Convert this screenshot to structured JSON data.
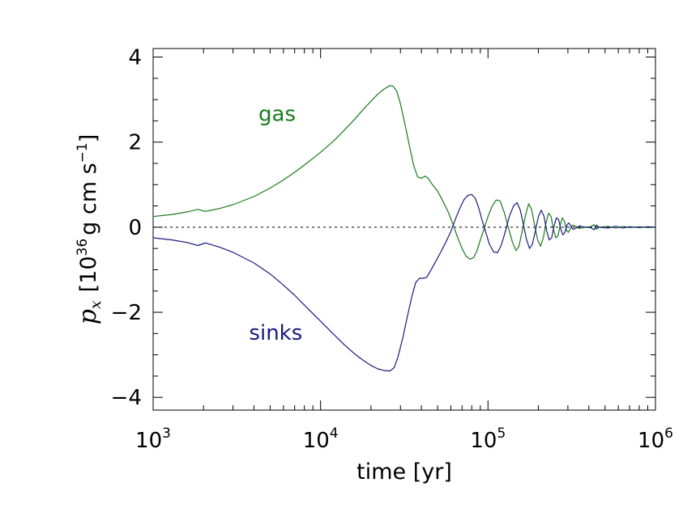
{
  "chart_data": {
    "type": "line",
    "xlabel": "time [yr]",
    "ylabel": {
      "symbol": "p",
      "subscript": "x",
      "open": "[10",
      "exponent": "36",
      "unit": "g cm s",
      "unit_exponent": "−1",
      "close": "]"
    },
    "x_scale": "log",
    "xlim": [
      1000,
      1000000
    ],
    "ylim": [
      -4.3,
      4.2
    ],
    "x_ticks": [
      {
        "value": 1000,
        "base": "10",
        "exp": "3"
      },
      {
        "value": 10000,
        "base": "10",
        "exp": "4"
      },
      {
        "value": 100000,
        "base": "10",
        "exp": "5"
      },
      {
        "value": 1000000,
        "base": "10",
        "exp": "6"
      }
    ],
    "y_ticks": [
      {
        "value": -4,
        "label": "−4"
      },
      {
        "value": -2,
        "label": "−2"
      },
      {
        "value": 0,
        "label": "0"
      },
      {
        "value": 2,
        "label": "2"
      },
      {
        "value": 4,
        "label": "4"
      }
    ],
    "reference_line": {
      "y": 0,
      "style": "dashed"
    },
    "grid": false,
    "series": [
      {
        "name": "gas",
        "color": "#1a7a1a",
        "points": [
          [
            1000,
            0.25
          ],
          [
            1300,
            0.3
          ],
          [
            1600,
            0.36
          ],
          [
            1850,
            0.42
          ],
          [
            2050,
            0.37
          ],
          [
            2500,
            0.44
          ],
          [
            3000,
            0.53
          ],
          [
            4000,
            0.72
          ],
          [
            5000,
            0.92
          ],
          [
            6000,
            1.11
          ],
          [
            7000,
            1.29
          ],
          [
            8000,
            1.46
          ],
          [
            10000,
            1.76
          ],
          [
            12000,
            2.03
          ],
          [
            14000,
            2.3
          ],
          [
            16000,
            2.54
          ],
          [
            18000,
            2.77
          ],
          [
            20000,
            2.96
          ],
          [
            22000,
            3.13
          ],
          [
            24000,
            3.25
          ],
          [
            26000,
            3.33
          ],
          [
            27000,
            3.32
          ],
          [
            28500,
            3.2
          ],
          [
            30000,
            2.9
          ],
          [
            32000,
            2.4
          ],
          [
            34000,
            1.9
          ],
          [
            36000,
            1.45
          ],
          [
            38000,
            1.18
          ],
          [
            40000,
            1.15
          ],
          [
            42000,
            1.2
          ],
          [
            44000,
            1.15
          ],
          [
            46000,
            1.03
          ],
          [
            50000,
            0.85
          ],
          [
            54000,
            0.6
          ],
          [
            58000,
            0.35
          ],
          [
            62000,
            0.05
          ],
          [
            66000,
            -0.25
          ],
          [
            70000,
            -0.5
          ],
          [
            74000,
            -0.68
          ],
          [
            78000,
            -0.75
          ],
          [
            82000,
            -0.72
          ],
          [
            86000,
            -0.55
          ],
          [
            90000,
            -0.3
          ],
          [
            95000,
            -0.03
          ],
          [
            100000,
            0.25
          ],
          [
            106000,
            0.5
          ],
          [
            112000,
            0.64
          ],
          [
            118000,
            0.62
          ],
          [
            125000,
            0.35
          ],
          [
            132000,
            0.0
          ],
          [
            140000,
            -0.35
          ],
          [
            147000,
            -0.55
          ],
          [
            153000,
            -0.45
          ],
          [
            160000,
            -0.1
          ],
          [
            168000,
            0.3
          ],
          [
            175000,
            0.55
          ],
          [
            182000,
            0.42
          ],
          [
            190000,
            0.05
          ],
          [
            198000,
            -0.3
          ],
          [
            206000,
            -0.45
          ],
          [
            214000,
            -0.25
          ],
          [
            222000,
            0.1
          ],
          [
            230000,
            0.33
          ],
          [
            238000,
            0.25
          ],
          [
            246000,
            -0.05
          ],
          [
            254000,
            -0.25
          ],
          [
            262000,
            -0.2
          ],
          [
            270000,
            0.05
          ],
          [
            278000,
            0.22
          ],
          [
            286000,
            0.14
          ],
          [
            294000,
            -0.07
          ],
          [
            302000,
            -0.12
          ],
          [
            310000,
            -0.04
          ],
          [
            320000,
            0.05
          ],
          [
            335000,
            0.02
          ],
          [
            350000,
            -0.03
          ],
          [
            380000,
            0.0
          ],
          [
            410000,
            0.01
          ],
          [
            430000,
            0.06
          ],
          [
            445000,
            -0.05
          ],
          [
            460000,
            0.0
          ],
          [
            520000,
            0.02
          ],
          [
            580000,
            -0.02
          ],
          [
            640000,
            0.02
          ],
          [
            700000,
            -0.01
          ],
          [
            800000,
            0.01
          ],
          [
            900000,
            -0.01
          ],
          [
            1000000,
            0.0
          ]
        ]
      },
      {
        "name": "sinks",
        "color": "#1a1a80",
        "points": [
          [
            1000,
            -0.25
          ],
          [
            1300,
            -0.3
          ],
          [
            1600,
            -0.36
          ],
          [
            1850,
            -0.43
          ],
          [
            2050,
            -0.37
          ],
          [
            2500,
            -0.47
          ],
          [
            3000,
            -0.59
          ],
          [
            4000,
            -0.84
          ],
          [
            5000,
            -1.1
          ],
          [
            6000,
            -1.36
          ],
          [
            7000,
            -1.6
          ],
          [
            8000,
            -1.83
          ],
          [
            10000,
            -2.21
          ],
          [
            12000,
            -2.52
          ],
          [
            14000,
            -2.78
          ],
          [
            16000,
            -2.98
          ],
          [
            18000,
            -3.13
          ],
          [
            20000,
            -3.25
          ],
          [
            22000,
            -3.33
          ],
          [
            24000,
            -3.37
          ],
          [
            26000,
            -3.38
          ],
          [
            27500,
            -3.3
          ],
          [
            29000,
            -3.05
          ],
          [
            31000,
            -2.6
          ],
          [
            33000,
            -2.1
          ],
          [
            35000,
            -1.65
          ],
          [
            37000,
            -1.3
          ],
          [
            39000,
            -1.2
          ],
          [
            41000,
            -1.2
          ],
          [
            43000,
            -1.18
          ],
          [
            45000,
            -1.05
          ],
          [
            48000,
            -0.85
          ],
          [
            52000,
            -0.6
          ],
          [
            56000,
            -0.35
          ],
          [
            60000,
            -0.1
          ],
          [
            64000,
            0.2
          ],
          [
            68000,
            0.45
          ],
          [
            72000,
            0.65
          ],
          [
            76000,
            0.75
          ],
          [
            80000,
            0.77
          ],
          [
            84000,
            0.68
          ],
          [
            88000,
            0.45
          ],
          [
            92000,
            0.18
          ],
          [
            97000,
            -0.12
          ],
          [
            102000,
            -0.4
          ],
          [
            108000,
            -0.58
          ],
          [
            114000,
            -0.6
          ],
          [
            120000,
            -0.42
          ],
          [
            127000,
            -0.1
          ],
          [
            134000,
            0.25
          ],
          [
            142000,
            0.5
          ],
          [
            149000,
            0.58
          ],
          [
            156000,
            0.4
          ],
          [
            163000,
            0.05
          ],
          [
            170000,
            -0.3
          ],
          [
            177000,
            -0.5
          ],
          [
            184000,
            -0.4
          ],
          [
            192000,
            -0.08
          ],
          [
            200000,
            0.25
          ],
          [
            208000,
            0.4
          ],
          [
            216000,
            0.25
          ],
          [
            224000,
            -0.08
          ],
          [
            232000,
            -0.3
          ],
          [
            240000,
            -0.25
          ],
          [
            248000,
            0.03
          ],
          [
            256000,
            0.22
          ],
          [
            264000,
            0.18
          ],
          [
            272000,
            -0.04
          ],
          [
            280000,
            -0.18
          ],
          [
            288000,
            -0.12
          ],
          [
            296000,
            0.05
          ],
          [
            304000,
            0.1
          ],
          [
            312000,
            0.03
          ],
          [
            322000,
            -0.05
          ],
          [
            337000,
            -0.02
          ],
          [
            352000,
            0.03
          ],
          [
            380000,
            0.0
          ],
          [
            410000,
            -0.01
          ],
          [
            430000,
            -0.06
          ],
          [
            445000,
            0.05
          ],
          [
            460000,
            0.0
          ],
          [
            520000,
            -0.02
          ],
          [
            580000,
            0.02
          ],
          [
            640000,
            -0.02
          ],
          [
            700000,
            0.01
          ],
          [
            800000,
            -0.01
          ],
          [
            900000,
            0.01
          ],
          [
            1000000,
            0.0
          ]
        ]
      }
    ],
    "annotations": [
      {
        "text": "gas",
        "series": "gas",
        "at": [
          5500,
          2.5
        ]
      },
      {
        "text": "sinks",
        "series": "sinks",
        "at": [
          5400,
          -2.65
        ]
      }
    ]
  }
}
